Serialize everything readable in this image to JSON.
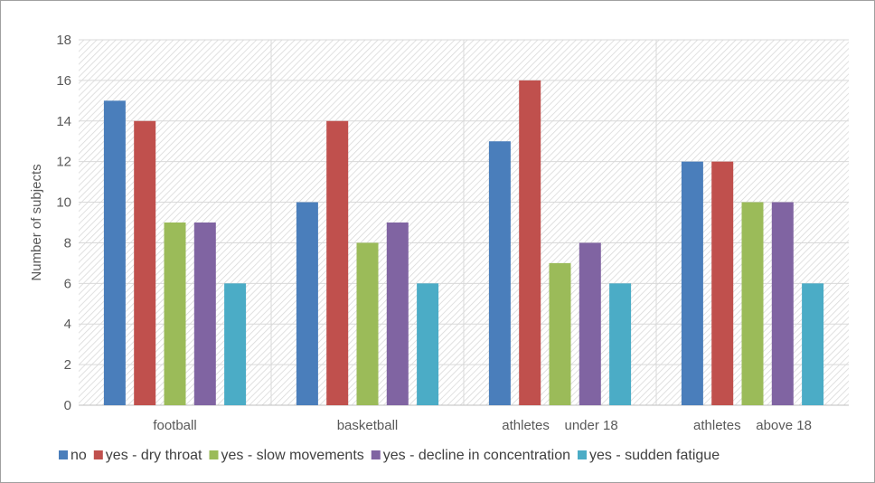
{
  "chart_data": {
    "type": "bar",
    "title": "",
    "xlabel": "",
    "ylabel": "Number of subjects",
    "ylim": [
      0,
      18
    ],
    "yticks": [
      0,
      2,
      4,
      6,
      8,
      10,
      12,
      14,
      16,
      18
    ],
    "grid": true,
    "legend_position": "bottom",
    "categories": [
      "football",
      "basketball",
      "athletes    under 18",
      "athletes    above 18"
    ],
    "series": [
      {
        "name": "no",
        "color": "#4a7ebb",
        "values": [
          15,
          10,
          13,
          12
        ]
      },
      {
        "name": "yes - dry throat",
        "color": "#c0504d",
        "values": [
          14,
          14,
          16,
          12
        ]
      },
      {
        "name": "yes - slow movements",
        "color": "#9bbb59",
        "values": [
          9,
          8,
          7,
          10
        ]
      },
      {
        "name": "yes - decline in concentration",
        "color": "#8064a2",
        "values": [
          9,
          9,
          8,
          10
        ]
      },
      {
        "name": "yes - sudden fatigue",
        "color": "#4bacc6",
        "values": [
          6,
          6,
          6,
          6
        ]
      }
    ]
  }
}
